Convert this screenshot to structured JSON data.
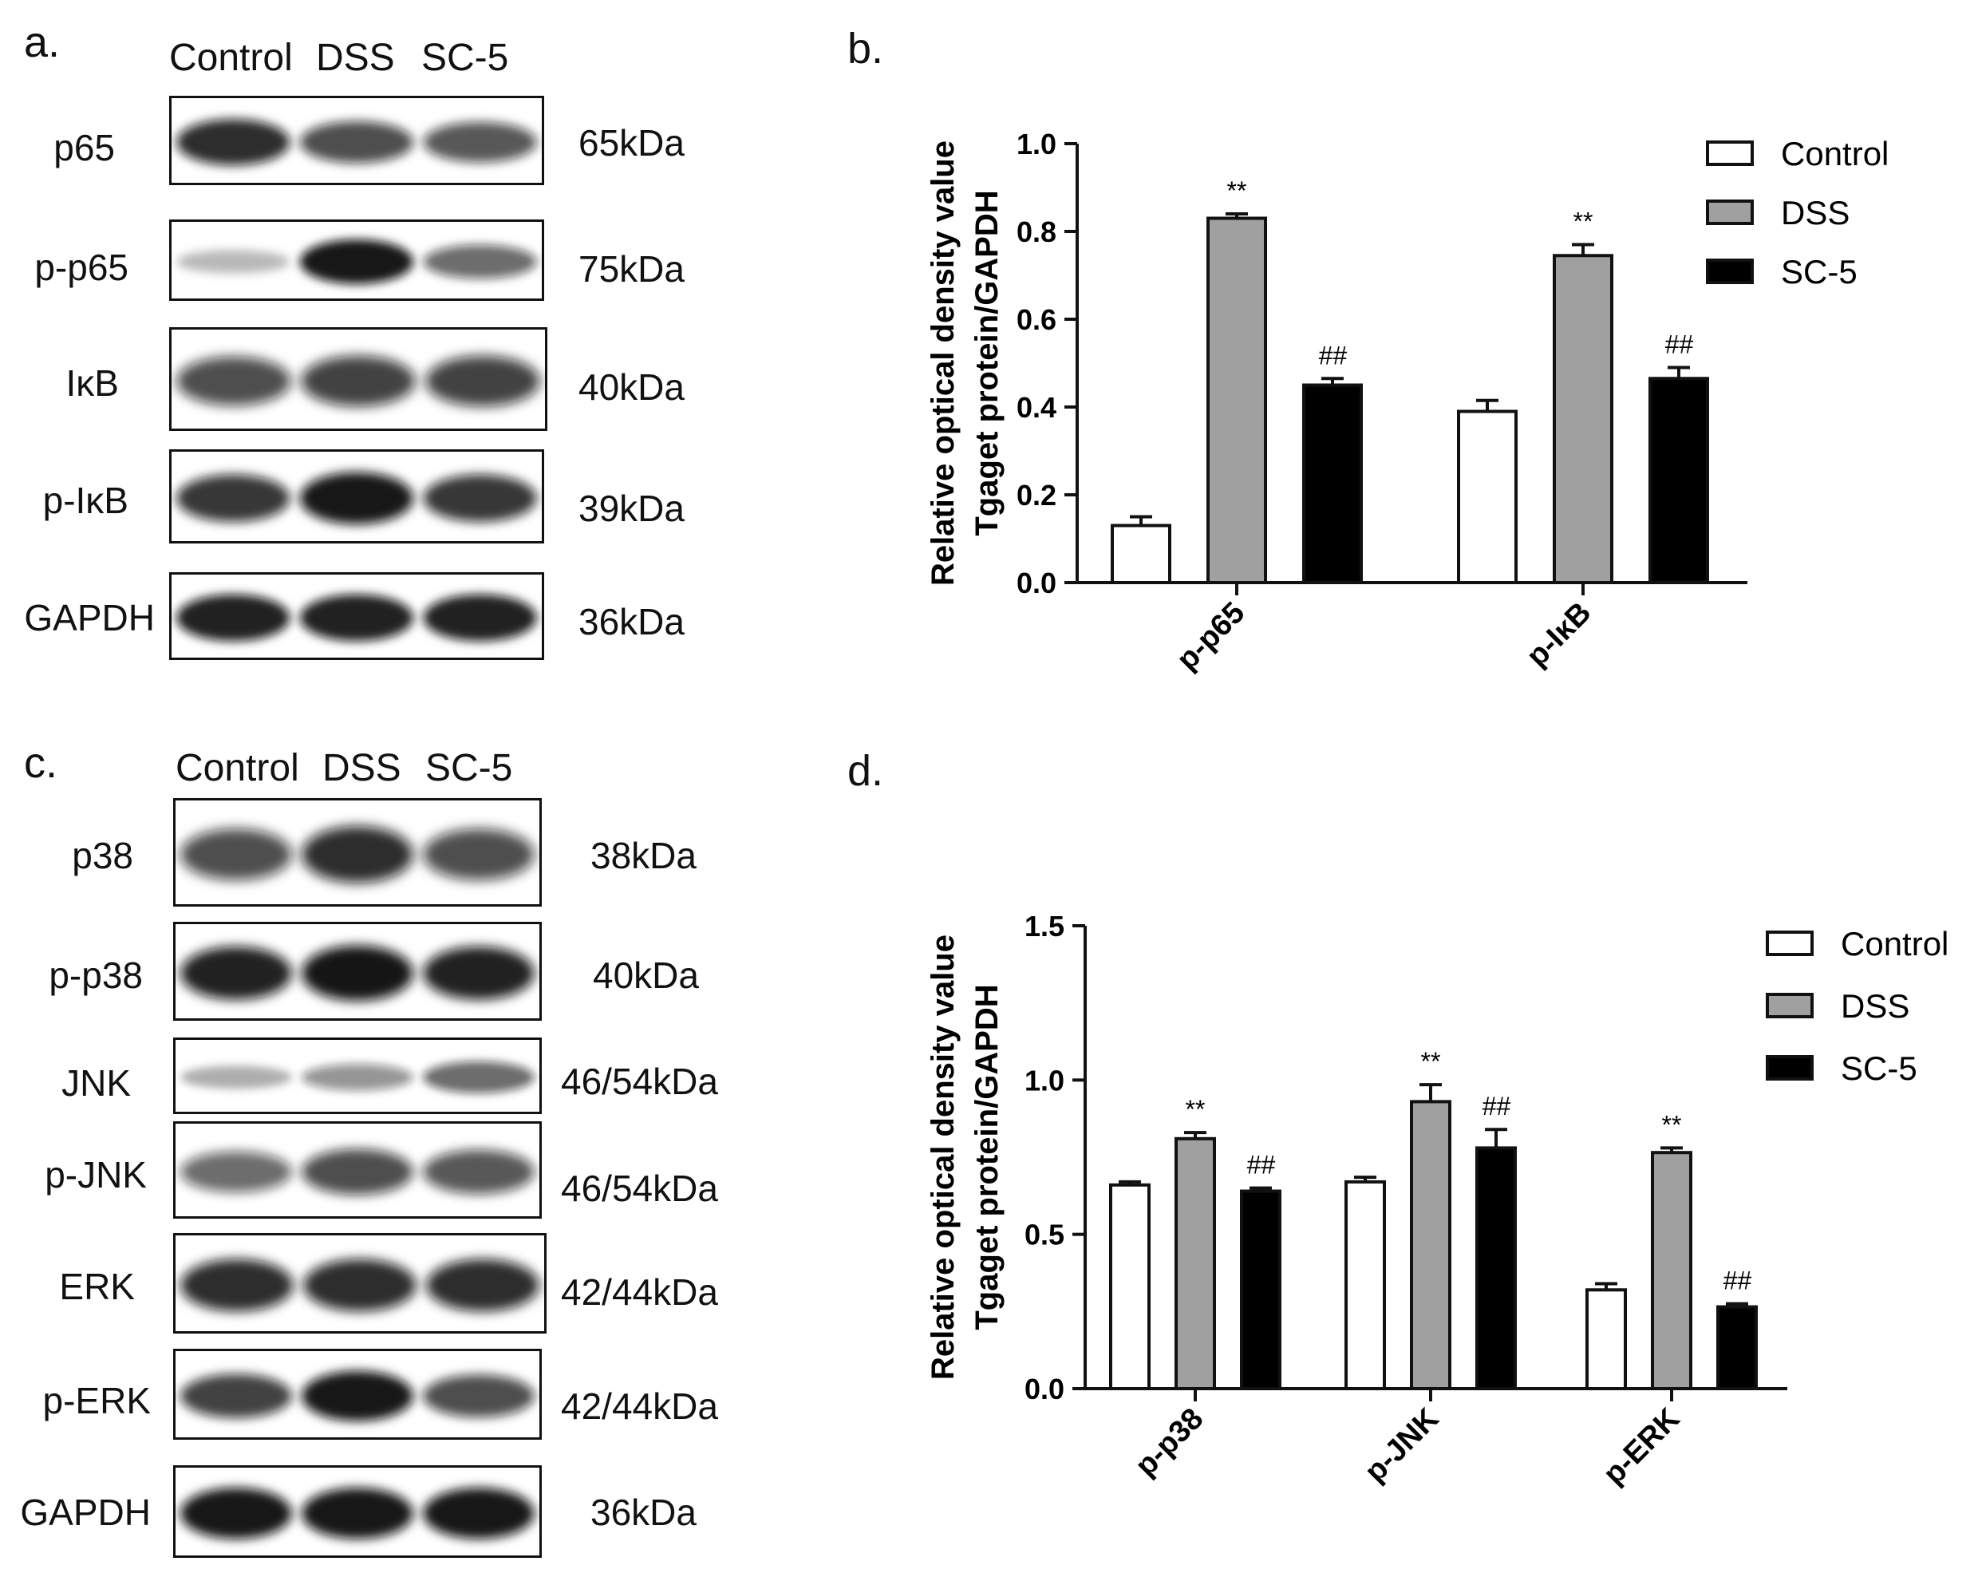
{
  "panels": {
    "a": "a.",
    "b": "b.",
    "c": "c.",
    "d": "d."
  },
  "blot_a": {
    "lanes": [
      "Control",
      "DSS",
      "SC-5"
    ],
    "rows": [
      {
        "label": "p65",
        "mw": "65kDa",
        "intensity": [
          0.85,
          0.7,
          0.65
        ]
      },
      {
        "label": "p-p65",
        "mw": "75kDa",
        "intensity": [
          0.15,
          0.95,
          0.55
        ]
      },
      {
        "label": "IκB",
        "mw": "40kDa",
        "intensity": [
          0.7,
          0.75,
          0.75
        ]
      },
      {
        "label": "p-IκB",
        "mw": "39kDa",
        "intensity": [
          0.8,
          0.95,
          0.8
        ]
      },
      {
        "label": "GAPDH",
        "mw": "36kDa",
        "intensity": [
          0.9,
          0.9,
          0.9
        ]
      }
    ]
  },
  "blot_c": {
    "lanes": [
      "Control",
      "DSS",
      "SC-5"
    ],
    "rows": [
      {
        "label": "p38",
        "mw": "38kDa",
        "intensity": [
          0.7,
          0.85,
          0.7
        ]
      },
      {
        "label": "p-p38",
        "mw": "40kDa",
        "intensity": [
          0.9,
          0.97,
          0.9
        ]
      },
      {
        "label": "JNK",
        "mw": "46/54kDa",
        "intensity": [
          0.2,
          0.35,
          0.55
        ]
      },
      {
        "label": "p-JNK",
        "mw": "46/54kDa",
        "intensity": [
          0.55,
          0.7,
          0.65
        ]
      },
      {
        "label": "ERK",
        "mw": "42/44kDa",
        "intensity": [
          0.85,
          0.85,
          0.85
        ]
      },
      {
        "label": "p-ERK",
        "mw": "42/44kDa",
        "intensity": [
          0.75,
          0.95,
          0.7
        ]
      },
      {
        "label": "GAPDH",
        "mw": "36kDa",
        "intensity": [
          0.95,
          0.95,
          0.95
        ]
      }
    ]
  },
  "legend_colors": {
    "Control": "#ffffff",
    "DSS": "#a0a0a0",
    "SC-5": "#000000"
  },
  "chart_data": [
    {
      "type": "bar",
      "panel": "b.",
      "ylabel_line1": "Relative optical density value",
      "ylabel_line2": "Tgaget protein/GAPDH",
      "ylim": [
        0,
        1.0
      ],
      "yticks": [
        "0.0",
        "0.2",
        "0.4",
        "0.6",
        "0.8",
        "1.0"
      ],
      "categories": [
        "p-p65",
        "p-IκB"
      ],
      "legend_position": "top-right",
      "series": [
        {
          "name": "Control",
          "values": [
            0.13,
            0.39
          ],
          "errors": [
            0.02,
            0.025
          ],
          "marks": [
            "",
            ""
          ]
        },
        {
          "name": "DSS",
          "values": [
            0.83,
            0.745
          ],
          "errors": [
            0.01,
            0.025
          ],
          "marks": [
            "**",
            "**"
          ]
        },
        {
          "name": "SC-5",
          "values": [
            0.45,
            0.465
          ],
          "errors": [
            0.015,
            0.025
          ],
          "marks": [
            "##",
            "##"
          ]
        }
      ]
    },
    {
      "type": "bar",
      "panel": "d.",
      "ylabel_line1": "Relative optical density value",
      "ylabel_line2": "Tgaget protein/GAPDH",
      "ylim": [
        0,
        1.5
      ],
      "yticks": [
        "0.0",
        "0.5",
        "1.0",
        "1.5"
      ],
      "categories": [
        "p-p38",
        "p-JNK",
        "p-ERK"
      ],
      "legend_position": "top-right",
      "series": [
        {
          "name": "Control",
          "values": [
            0.66,
            0.67,
            0.32
          ],
          "errors": [
            0.01,
            0.015,
            0.02
          ],
          "marks": [
            "",
            "",
            ""
          ]
        },
        {
          "name": "DSS",
          "values": [
            0.81,
            0.93,
            0.765
          ],
          "errors": [
            0.02,
            0.055,
            0.015
          ],
          "marks": [
            "**",
            "**",
            "**"
          ]
        },
        {
          "name": "SC-5",
          "values": [
            0.64,
            0.78,
            0.265
          ],
          "errors": [
            0.01,
            0.06,
            0.01
          ],
          "marks": [
            "##",
            "##",
            "##"
          ]
        }
      ]
    }
  ]
}
